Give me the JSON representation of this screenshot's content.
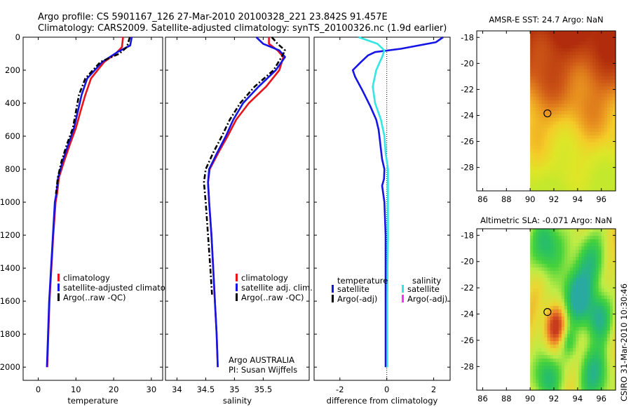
{
  "header": {
    "line1": "Argo profile: CS 5901167_126 27-Mar-2010 20100328_221 23.842S 91.457E",
    "line2": "Climatology: CARS2009. Satellite-adjusted climatology: synTS_20100326.nc (1.9d earlier)"
  },
  "side_label": "CSIRO 31-Mar-2010 10:30:46",
  "colors": {
    "climatology": "#e8141c",
    "satellite": "#1414e6",
    "argo": "#000000",
    "satellite_salinity": "#33e6e6",
    "argo_adj_salinity": "#ff33ff"
  },
  "chart_data": [
    {
      "type": "line",
      "xlabel": "temperature",
      "ylabel": "",
      "xlim": [
        -4,
        33
      ],
      "ylim": [
        2080,
        0
      ],
      "xticks": [
        0,
        10,
        20,
        30
      ],
      "yticks": [
        0,
        200,
        400,
        600,
        800,
        1000,
        1200,
        1400,
        1600,
        1800,
        2000
      ],
      "legend": [
        "climatology",
        "satellite-adjusted climatology",
        "Argo(..raw -QC)"
      ],
      "series": [
        {
          "name": "climatology",
          "style": "solid",
          "color": "#e8141c",
          "x": [
            22.5,
            22.2,
            20.5,
            17.5,
            14,
            12.5,
            11.2,
            10,
            8.4,
            6.9,
            5.5,
            5,
            4.6,
            4,
            3.5,
            3,
            2.7,
            2.4
          ],
          "y": [
            0,
            60,
            100,
            150,
            250,
            350,
            450,
            550,
            650,
            750,
            850,
            950,
            1000,
            1200,
            1400,
            1600,
            1800,
            2000
          ]
        },
        {
          "name": "satellite-adjusted climatology",
          "style": "solid",
          "color": "#1414e6",
          "x": [
            24.8,
            24.4,
            21,
            17,
            13,
            11.5,
            10.5,
            9.5,
            8,
            6.5,
            5.3,
            4.8,
            4.4,
            3.9,
            3.4,
            2.9,
            2.6,
            2.3
          ],
          "y": [
            0,
            50,
            90,
            150,
            250,
            350,
            450,
            550,
            650,
            750,
            850,
            950,
            1000,
            1200,
            1400,
            1600,
            1800,
            2000
          ]
        },
        {
          "name": "Argo(..raw -QC)",
          "style": "dash-dot",
          "color": "#000000",
          "x": [
            24.3,
            23.5,
            21.5,
            16.5,
            12.5,
            10.8,
            10,
            9.2,
            7.6,
            6.2,
            5.2,
            4.7
          ],
          "y": [
            0,
            60,
            100,
            150,
            250,
            350,
            450,
            550,
            650,
            750,
            850,
            950
          ]
        }
      ]
    },
    {
      "type": "line",
      "xlabel": "salinity",
      "ylabel": "",
      "xlim": [
        33.8,
        36.3
      ],
      "ylim": [
        2080,
        0
      ],
      "xticks": [
        34,
        34.5,
        35,
        35.5
      ],
      "yticks": [
        0,
        200,
        400,
        600,
        800,
        1000,
        1200,
        1400,
        1600,
        1800,
        2000
      ],
      "legend": [
        "climatology",
        "satellite adj. clim.",
        "Argo(..raw -QC)"
      ],
      "annotation": [
        "Argo AUSTRALIA",
        "PI: Susan Wijffels"
      ],
      "series": [
        {
          "name": "climatology",
          "style": "solid",
          "color": "#e8141c",
          "x": [
            35.6,
            35.6,
            35.75,
            35.85,
            35.78,
            35.55,
            35.25,
            35.03,
            34.88,
            34.72,
            34.57,
            34.54,
            34.56,
            34.6,
            34.63,
            34.66,
            34.69,
            34.71
          ],
          "y": [
            0,
            40,
            80,
            120,
            200,
            300,
            400,
            500,
            600,
            700,
            800,
            880,
            1000,
            1200,
            1400,
            1600,
            1800,
            2000
          ]
        },
        {
          "name": "satellite adj. clim.",
          "style": "solid",
          "color": "#1414e6",
          "x": [
            35.38,
            35.5,
            35.78,
            35.88,
            35.72,
            35.42,
            35.15,
            34.98,
            34.85,
            34.7,
            34.56,
            34.54,
            34.56,
            34.6,
            34.63,
            34.66,
            34.69,
            34.71
          ],
          "y": [
            0,
            40,
            80,
            120,
            200,
            300,
            400,
            500,
            600,
            700,
            800,
            880,
            1000,
            1200,
            1400,
            1600,
            1800,
            2000
          ]
        },
        {
          "name": "Argo(..raw -QC)",
          "style": "dash-dot",
          "color": "#000000",
          "x": [
            35.65,
            35.75,
            35.88,
            35.82,
            35.68,
            35.35,
            35.1,
            34.92,
            34.78,
            34.63,
            34.5,
            34.47,
            34.5,
            34.54,
            34.58,
            34.61
          ],
          "y": [
            0,
            40,
            80,
            120,
            200,
            300,
            400,
            500,
            600,
            700,
            800,
            880,
            1000,
            1200,
            1400,
            1560
          ]
        }
      ]
    },
    {
      "type": "line",
      "xlabel": "difference from climatology",
      "ylabel": "",
      "xlim": [
        -3.1,
        2.7
      ],
      "ylim": [
        2080,
        0
      ],
      "xticks": [
        -2,
        0,
        2
      ],
      "yticks": [
        0,
        200,
        400,
        600,
        800,
        1000,
        1200,
        1400,
        1600,
        1800,
        2000
      ],
      "legend_groups": [
        {
          "title": "temperature",
          "entries": [
            "satellite",
            "Argo(-adj)"
          ]
        },
        {
          "title": "salinity",
          "entries": [
            "satellite",
            "Argo(-adj)"
          ]
        }
      ],
      "series": [
        {
          "name": "temperature satellite",
          "style": "solid",
          "color": "#1414e6",
          "x": [
            2.4,
            2.1,
            0.6,
            -0.5,
            -0.8,
            -1.1,
            -1.45,
            -1.35,
            -1.05,
            -0.7,
            -0.45,
            -0.35,
            -0.3,
            -0.25,
            -0.2,
            -0.1,
            -0.12,
            -0.2,
            -0.1,
            -0.05,
            -0.05,
            -0.05,
            -0.05
          ],
          "y": [
            0,
            30,
            70,
            90,
            110,
            150,
            200,
            240,
            320,
            420,
            500,
            560,
            620,
            680,
            740,
            800,
            860,
            900,
            1000,
            1200,
            1600,
            1800,
            2000
          ]
        },
        {
          "name": "salinity satellite",
          "style": "solid",
          "color": "#33e6e6",
          "x": [
            -1.2,
            -0.4,
            -0.1,
            -0.2,
            -0.45,
            -0.6,
            -0.5,
            -0.25,
            -0.1,
            -0.05,
            0.05,
            0.05,
            0.05,
            0.03,
            0.02,
            0.02
          ],
          "y": [
            0,
            40,
            80,
            120,
            200,
            300,
            400,
            500,
            600,
            700,
            800,
            1000,
            1200,
            1400,
            1600,
            2000
          ]
        }
      ]
    },
    {
      "type": "heatmap",
      "title": "AMSR-E SST: 24.7 Argo: NaN",
      "xlim": [
        85.5,
        97.2
      ],
      "ylim": [
        -29.8,
        -17.5
      ],
      "xticks": [
        86,
        88,
        90,
        92,
        94,
        96
      ],
      "yticks": [
        -18,
        -20,
        -22,
        -24,
        -26,
        -28
      ],
      "data_extent": {
        "lon": [
          90,
          97.2
        ]
      },
      "marker": {
        "lon": 91.457,
        "lat": -23.842
      }
    },
    {
      "type": "heatmap",
      "title": "Altimetric SLA: -0.071 Argo: NaN",
      "xlim": [
        85.5,
        97.2
      ],
      "ylim": [
        -29.8,
        -17.5
      ],
      "xticks": [
        86,
        88,
        90,
        92,
        94,
        96
      ],
      "yticks": [
        -18,
        -20,
        -22,
        -24,
        -26,
        -28
      ],
      "data_extent": {
        "lon": [
          90,
          97.2
        ]
      },
      "marker": {
        "lon": 91.457,
        "lat": -23.842
      }
    }
  ]
}
